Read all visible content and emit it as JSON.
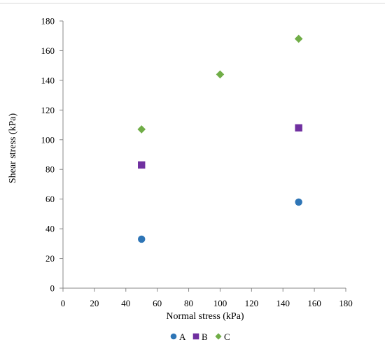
{
  "chart_data": {
    "type": "scatter",
    "title": "",
    "xlabel": "Normal stress (kPa)",
    "ylabel": "Shear stress (kPa)",
    "xlim": [
      0,
      180
    ],
    "ylim": [
      0,
      180
    ],
    "xticks": [
      0,
      20,
      40,
      60,
      80,
      100,
      120,
      140,
      160,
      180
    ],
    "yticks": [
      0,
      20,
      40,
      60,
      80,
      100,
      120,
      140,
      160,
      180
    ],
    "grid": false,
    "legend_position": "bottom",
    "series": [
      {
        "name": "A",
        "marker": "circle",
        "color": "#2e75b6",
        "points": [
          [
            50,
            33
          ],
          [
            150,
            58
          ]
        ]
      },
      {
        "name": "B",
        "marker": "square",
        "color": "#7030a0",
        "points": [
          [
            50,
            83
          ],
          [
            150,
            108
          ]
        ]
      },
      {
        "name": "C",
        "marker": "diamond",
        "color": "#70ad47",
        "points": [
          [
            50,
            107
          ],
          [
            100,
            144
          ],
          [
            150,
            168
          ]
        ]
      }
    ]
  }
}
